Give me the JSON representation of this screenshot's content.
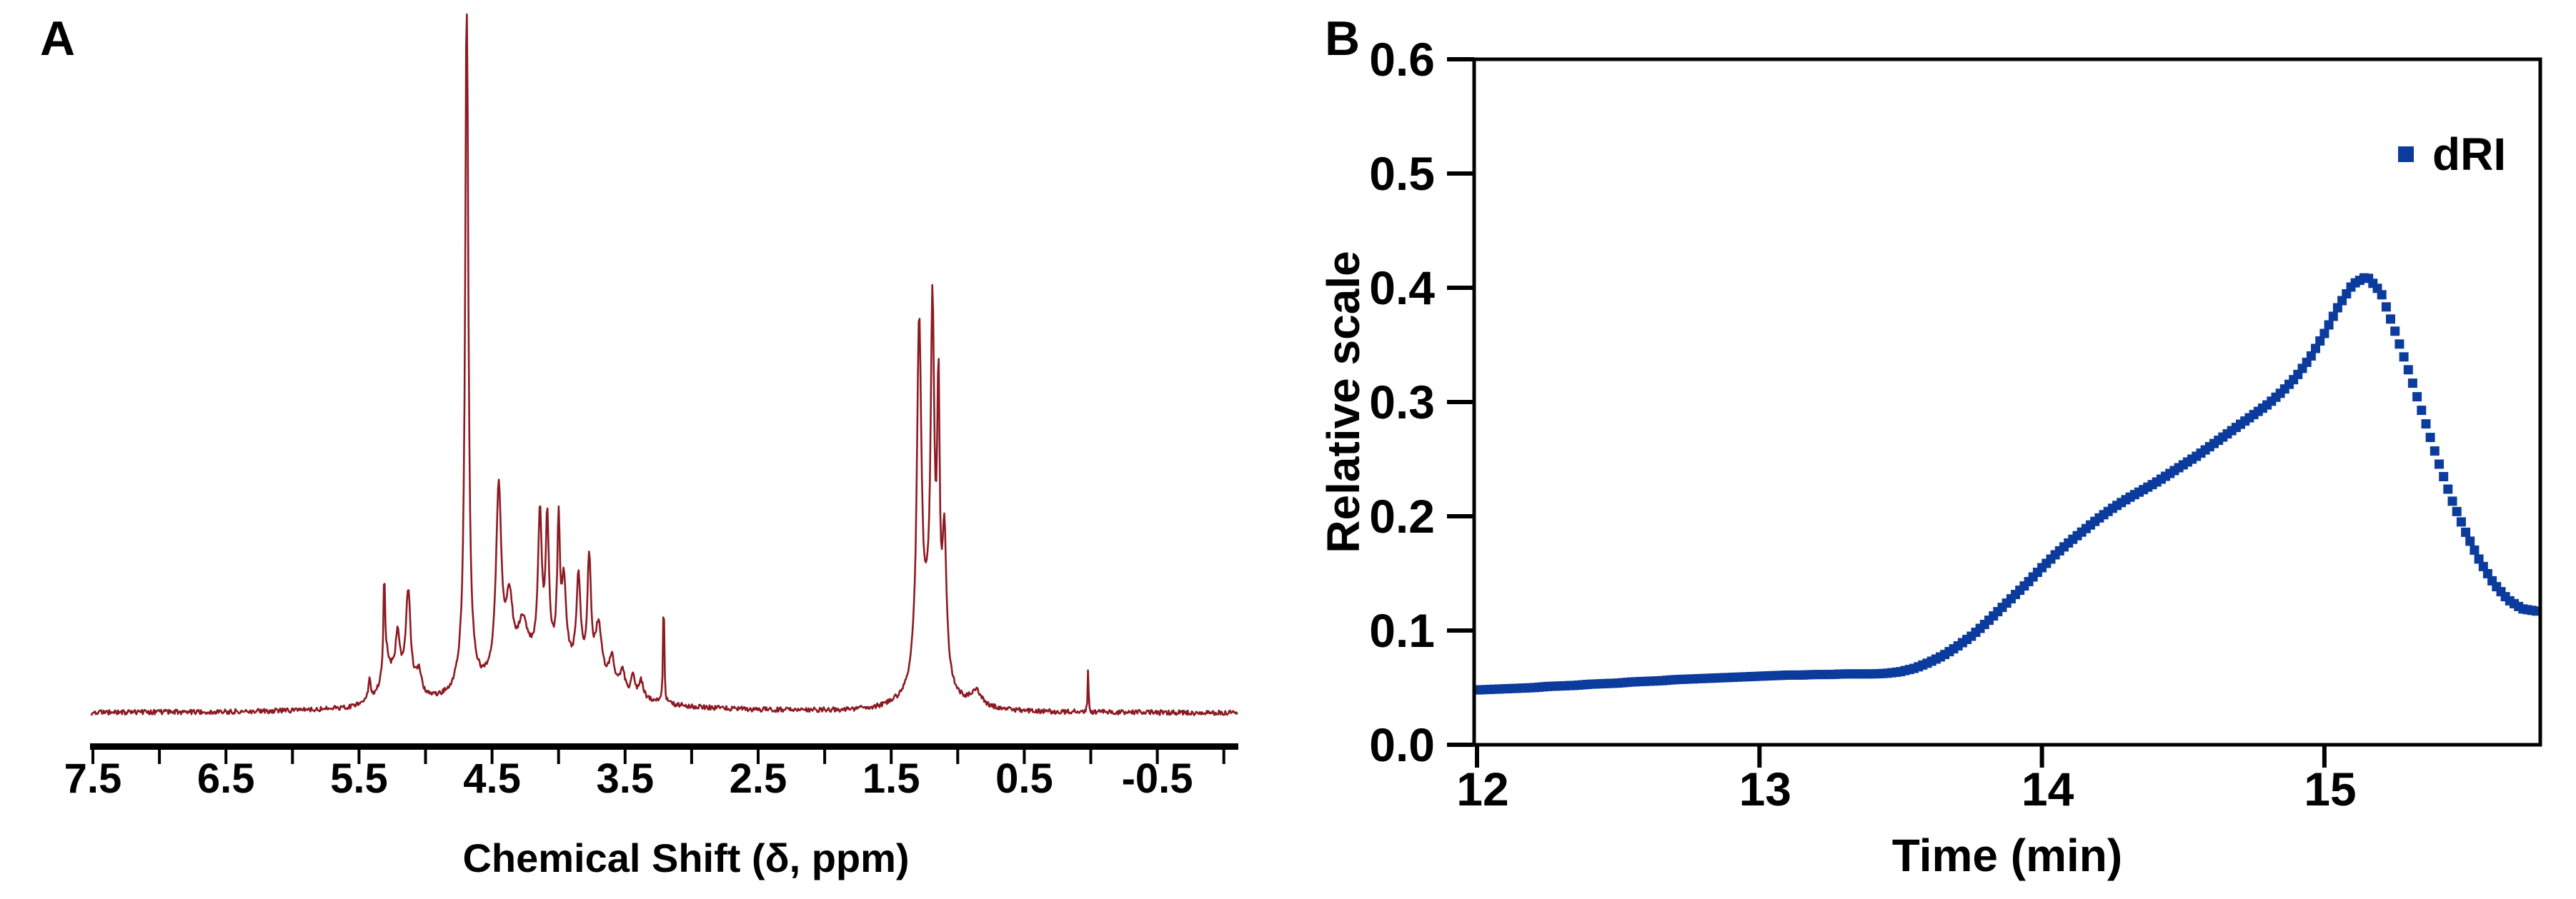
{
  "figure": {
    "background": "#ffffff",
    "axis_color": "#000000",
    "panels": [
      {
        "label": "A"
      },
      {
        "label": "B"
      }
    ]
  },
  "chart_data": [
    {
      "type": "line",
      "panel": "A",
      "description": "NMR spectrum trace",
      "xlabel": "Chemical Shift (δ, ppm)",
      "x_axis_reversed": true,
      "xlim": [
        7.52,
        -1.11
      ],
      "x_major_ticks": [
        7.5,
        6.5,
        5.5,
        4.5,
        3.5,
        2.5,
        1.5,
        0.5,
        -0.5
      ],
      "x_major_tick_labels": [
        "7.5",
        "6.5",
        "5.5",
        "4.5",
        "3.5",
        "2.5",
        "1.5",
        "0.5",
        "-0.5"
      ],
      "x_minor_ticks": [
        7.0,
        6.0,
        5.0,
        4.0,
        3.0,
        2.0,
        1.0,
        0.0,
        -1.0
      ],
      "line_color": "#8C1A22",
      "noise_amplitude": 0.0035,
      "peaks": [
        {
          "ppm": 4.69,
          "height": 1.0,
          "width": 0.013
        },
        {
          "ppm": 4.69,
          "height": 0.06,
          "width": 0.05
        },
        {
          "ppm": 5.42,
          "height": 0.03,
          "width": 0.012
        },
        {
          "ppm": 5.31,
          "height": 0.13,
          "width": 0.006
        },
        {
          "ppm": 5.3,
          "height": 0.055,
          "width": 0.035
        },
        {
          "ppm": 5.21,
          "height": 0.06,
          "width": 0.018
        },
        {
          "ppm": 5.13,
          "height": 0.14,
          "width": 0.022
        },
        {
          "ppm": 5.22,
          "height": 0.035,
          "width": 0.09
        },
        {
          "ppm": 5.05,
          "height": 0.035,
          "width": 0.025
        },
        {
          "ppm": 4.45,
          "height": 0.27,
          "width": 0.024
        },
        {
          "ppm": 4.37,
          "height": 0.1,
          "width": 0.03
        },
        {
          "ppm": 4.27,
          "height": 0.06,
          "width": 0.04
        },
        {
          "ppm": 4.14,
          "height": 0.2,
          "width": 0.017
        },
        {
          "ppm": 4.085,
          "height": 0.195,
          "width": 0.014
        },
        {
          "ppm": 4.0,
          "height": 0.19,
          "width": 0.012
        },
        {
          "ppm": 3.96,
          "height": 0.11,
          "width": 0.02
        },
        {
          "ppm": 3.85,
          "height": 0.135,
          "width": 0.018
        },
        {
          "ppm": 3.77,
          "height": 0.165,
          "width": 0.016
        },
        {
          "ppm": 3.7,
          "height": 0.08,
          "width": 0.03
        },
        {
          "ppm": 3.6,
          "height": 0.045,
          "width": 0.025
        },
        {
          "ppm": 3.52,
          "height": 0.035,
          "width": 0.02
        },
        {
          "ppm": 3.44,
          "height": 0.032,
          "width": 0.015
        },
        {
          "ppm": 3.38,
          "height": 0.025,
          "width": 0.02
        },
        {
          "ppm": 3.21,
          "height": 0.165,
          "width": 0.005
        },
        {
          "ppm": 4.1,
          "height": 0.075,
          "width": 0.4
        },
        {
          "ppm": 1.29,
          "height": 0.5,
          "width": 0.02
        },
        {
          "ppm": 1.19,
          "height": 0.47,
          "width": 0.016
        },
        {
          "ppm": 1.145,
          "height": 0.36,
          "width": 0.011
        },
        {
          "ppm": 1.1,
          "height": 0.2,
          "width": 0.018
        },
        {
          "ppm": 1.21,
          "height": 0.1,
          "width": 0.1
        },
        {
          "ppm": 0.86,
          "height": 0.022,
          "width": 0.05
        },
        {
          "ppm": 0.02,
          "height": 0.062,
          "width": 0.004
        }
      ]
    },
    {
      "type": "scatter",
      "panel": "B",
      "description": "SEC chromatogram dRI trace",
      "xlabel": "Time (min)",
      "ylabel": "Relative scale",
      "xlim": [
        12,
        15.76
      ],
      "ylim": [
        0.0,
        0.6
      ],
      "x_ticks": [
        12,
        13,
        14,
        15
      ],
      "x_tick_labels": [
        "12",
        "13",
        "14",
        "15"
      ],
      "y_ticks": [
        0.0,
        0.1,
        0.2,
        0.3,
        0.4,
        0.5,
        0.6
      ],
      "y_tick_labels": [
        "0.0",
        "0.1",
        "0.2",
        "0.3",
        "0.4",
        "0.5",
        "0.6"
      ],
      "legend": {
        "label": "dRI",
        "marker": "square",
        "marker_color": "#0B3B9C",
        "position": "top-right"
      },
      "marker_size_px": 13,
      "series": [
        {
          "name": "dRI",
          "color": "#0B3B9C",
          "x": [
            12.0,
            12.05,
            12.1,
            12.15,
            12.2,
            12.25,
            12.3,
            12.35,
            12.4,
            12.45,
            12.5,
            12.55,
            12.6,
            12.65,
            12.7,
            12.75,
            12.8,
            12.85,
            12.9,
            12.95,
            13.0,
            13.05,
            13.1,
            13.15,
            13.2,
            13.25,
            13.3,
            13.35,
            13.4,
            13.45,
            13.5,
            13.55,
            13.6,
            13.65,
            13.7,
            13.75,
            13.8,
            13.85,
            13.9,
            13.95,
            14.0,
            14.05,
            14.1,
            14.15,
            14.2,
            14.25,
            14.3,
            14.35,
            14.4,
            14.45,
            14.5,
            14.55,
            14.6,
            14.65,
            14.7,
            14.75,
            14.8,
            14.85,
            14.9,
            14.95,
            15.0,
            15.05,
            15.1,
            15.15,
            15.2,
            15.25,
            15.3,
            15.35,
            15.4,
            15.45,
            15.5,
            15.55,
            15.6,
            15.65,
            15.7,
            15.75
          ],
          "y": [
            0.048,
            0.0485,
            0.049,
            0.0495,
            0.05,
            0.051,
            0.0515,
            0.052,
            0.053,
            0.0535,
            0.054,
            0.055,
            0.0555,
            0.056,
            0.057,
            0.0575,
            0.058,
            0.0585,
            0.059,
            0.0595,
            0.06,
            0.0605,
            0.061,
            0.061,
            0.0615,
            0.0615,
            0.062,
            0.062,
            0.062,
            0.0625,
            0.064,
            0.067,
            0.072,
            0.078,
            0.086,
            0.095,
            0.106,
            0.118,
            0.13,
            0.142,
            0.155,
            0.167,
            0.178,
            0.188,
            0.198,
            0.207,
            0.215,
            0.222,
            0.229,
            0.237,
            0.245,
            0.253,
            0.262,
            0.271,
            0.28,
            0.289,
            0.298,
            0.309,
            0.322,
            0.339,
            0.36,
            0.384,
            0.403,
            0.41,
            0.396,
            0.362,
            0.326,
            0.288,
            0.25,
            0.215,
            0.186,
            0.161,
            0.141,
            0.127,
            0.119,
            0.117
          ]
        }
      ]
    }
  ]
}
